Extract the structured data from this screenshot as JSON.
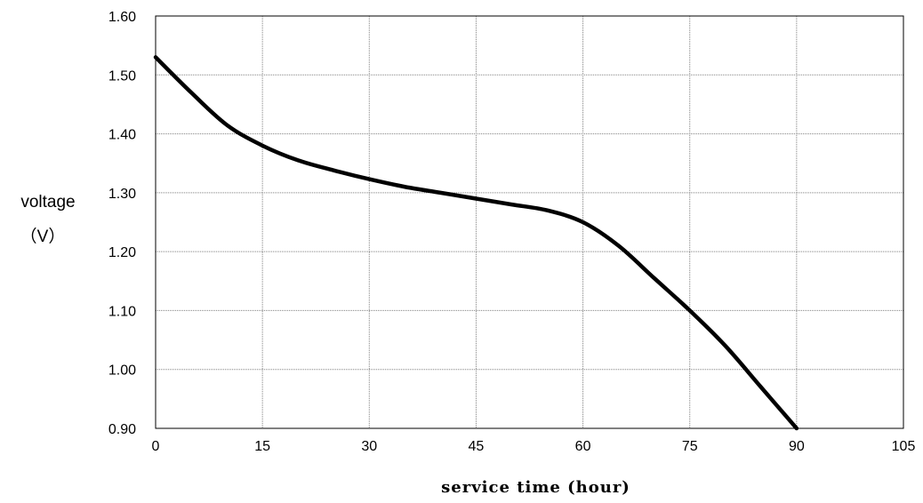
{
  "chart_data": {
    "type": "line",
    "title": "",
    "xlabel": "service time (hour)",
    "ylabel_line1": "voltage",
    "ylabel_line2": "（V）",
    "xlim": [
      0,
      105
    ],
    "ylim": [
      0.9,
      1.6
    ],
    "x_ticks": [
      0,
      15,
      30,
      45,
      60,
      75,
      90,
      105
    ],
    "y_ticks": [
      0.9,
      1.0,
      1.1,
      1.2,
      1.3,
      1.4,
      1.5,
      1.6
    ],
    "x_tick_labels": [
      "0",
      "15",
      "30",
      "45",
      "60",
      "75",
      "90",
      "105"
    ],
    "y_tick_labels": [
      "0.90",
      "1.00",
      "1.10",
      "1.20",
      "1.30",
      "1.40",
      "1.50",
      "1.60"
    ],
    "grid": true,
    "line_color": "#000000",
    "series": [
      {
        "x": [
          0,
          5,
          10,
          15,
          20,
          25,
          30,
          35,
          40,
          45,
          50,
          55,
          60,
          65,
          70,
          75,
          80,
          85,
          90
        ],
        "values": [
          1.53,
          1.47,
          1.415,
          1.38,
          1.355,
          1.338,
          1.323,
          1.31,
          1.3,
          1.29,
          1.28,
          1.27,
          1.25,
          1.21,
          1.155,
          1.1,
          1.04,
          0.97,
          0.9
        ]
      }
    ]
  }
}
